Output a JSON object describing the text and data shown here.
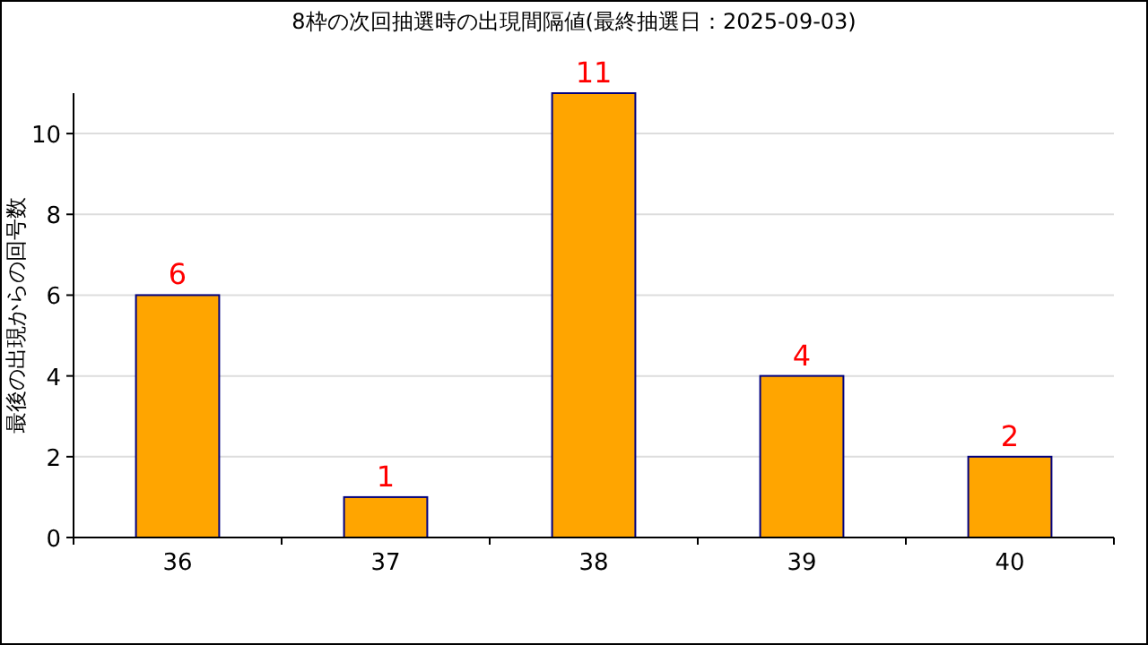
{
  "chart_data": {
    "type": "bar",
    "title": "8枠の次回抽選時の出現間隔値(最終抽選日：2025-09-03)",
    "ylabel": "最後の出現からの回号数",
    "categories": [
      "36",
      "37",
      "38",
      "39",
      "40"
    ],
    "values": [
      6,
      1,
      11,
      4,
      2
    ],
    "color": "#ffa500",
    "ylim": [
      0,
      11
    ],
    "yticks": [
      0,
      2,
      4,
      6,
      8,
      10
    ],
    "grid": "y",
    "data_labels": true
  }
}
